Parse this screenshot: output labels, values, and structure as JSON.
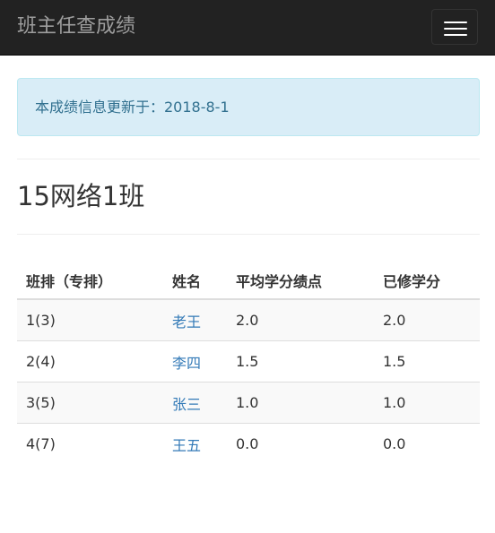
{
  "navbar": {
    "brand": "班主任查成绩",
    "toggle_icon": "hamburger-menu-icon"
  },
  "alert": {
    "text": "本成绩信息更新于：2018-8-1"
  },
  "class_title": "15网络1班",
  "table": {
    "headers": [
      "班排（专排）",
      "姓名",
      "平均学分绩点",
      "已修学分"
    ],
    "rows": [
      {
        "rank": "1(3)",
        "name": "老王",
        "gpa": "2.0",
        "credits": "2.0"
      },
      {
        "rank": "2(4)",
        "name": "李四",
        "gpa": "1.5",
        "credits": "1.5"
      },
      {
        "rank": "3(5)",
        "name": "张三",
        "gpa": "1.0",
        "credits": "1.0"
      },
      {
        "rank": "4(7)",
        "name": "王五",
        "gpa": "0.0",
        "credits": "0.0"
      }
    ]
  },
  "colors": {
    "navbar_bg": "#222222",
    "alert_bg": "#d9edf7",
    "alert_text": "#31708f",
    "link": "#337ab7"
  }
}
